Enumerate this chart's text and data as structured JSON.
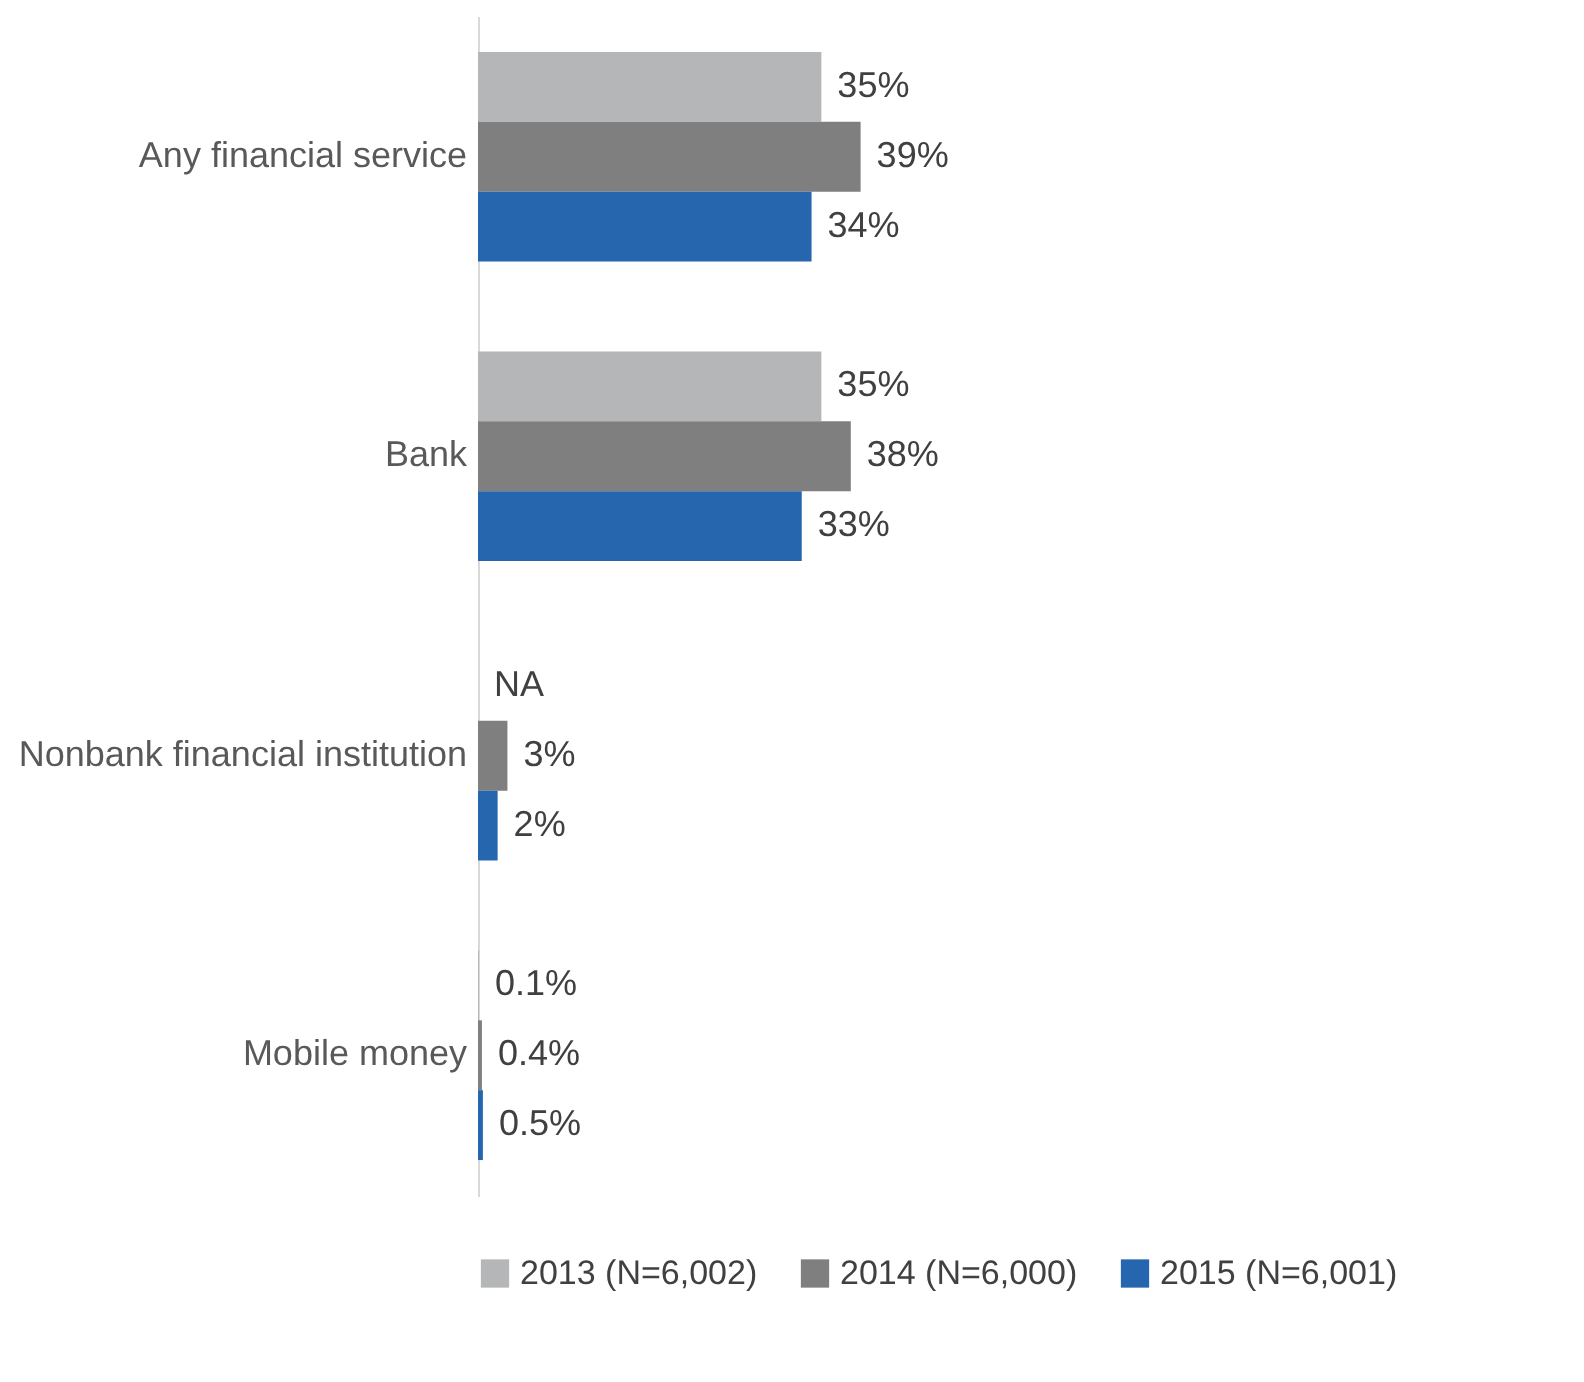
{
  "chart_data": {
    "type": "bar",
    "orientation": "horizontal",
    "categories": [
      "Any financial service",
      "Bank",
      "Nonbank financial institution",
      "Mobile money"
    ],
    "series": [
      {
        "name": "2013 (N=6,002)",
        "color": "#b4b6b7",
        "values": [
          35,
          35,
          null,
          0.1
        ],
        "value_labels": [
          "35%",
          "35%",
          "NA",
          "0.1%"
        ]
      },
      {
        "name": "2014 (N=6,000)",
        "color": "#7f7f7f",
        "values": [
          39,
          38,
          3,
          0.4
        ],
        "value_labels": [
          "39%",
          "38%",
          "3%",
          "0.4%"
        ]
      },
      {
        "name": "2015 (N=6,001)",
        "color": "#2566ae",
        "values": [
          34,
          33,
          2,
          0.5
        ],
        "value_labels": [
          "34%",
          "33%",
          "2%",
          "0.5%"
        ]
      }
    ],
    "legend": "bottom"
  }
}
